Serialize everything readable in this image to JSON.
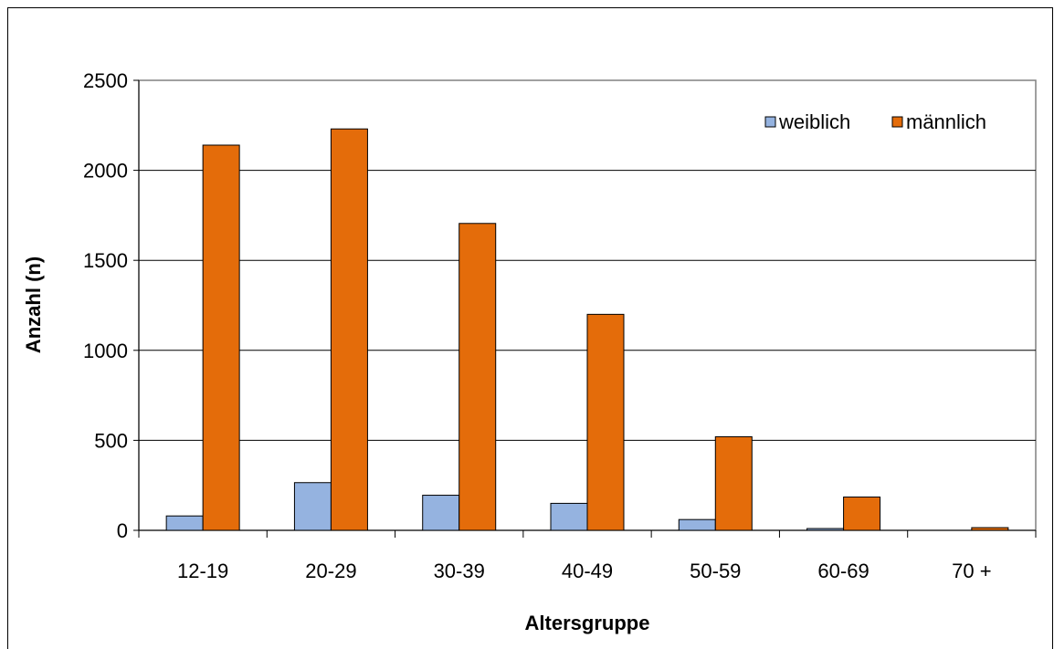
{
  "chart_data": {
    "type": "bar",
    "categories": [
      "12-19",
      "20-29",
      "30-39",
      "40-49",
      "50-59",
      "60-69",
      "70 +"
    ],
    "series": [
      {
        "name": "weiblich",
        "color": "#95B3E0",
        "values": [
          80,
          265,
          195,
          150,
          60,
          10,
          0
        ]
      },
      {
        "name": "männlich",
        "color": "#E46C0A",
        "values": [
          2140,
          2230,
          1705,
          1200,
          520,
          185,
          15
        ]
      }
    ],
    "title": "",
    "xlabel": "Altersgruppe",
    "ylabel": "Anzahl (n)",
    "ylim": [
      0,
      2500
    ],
    "yticks": [
      0,
      500,
      1000,
      1500,
      2000,
      2500
    ],
    "grid": true,
    "legend_position": "top-right"
  }
}
